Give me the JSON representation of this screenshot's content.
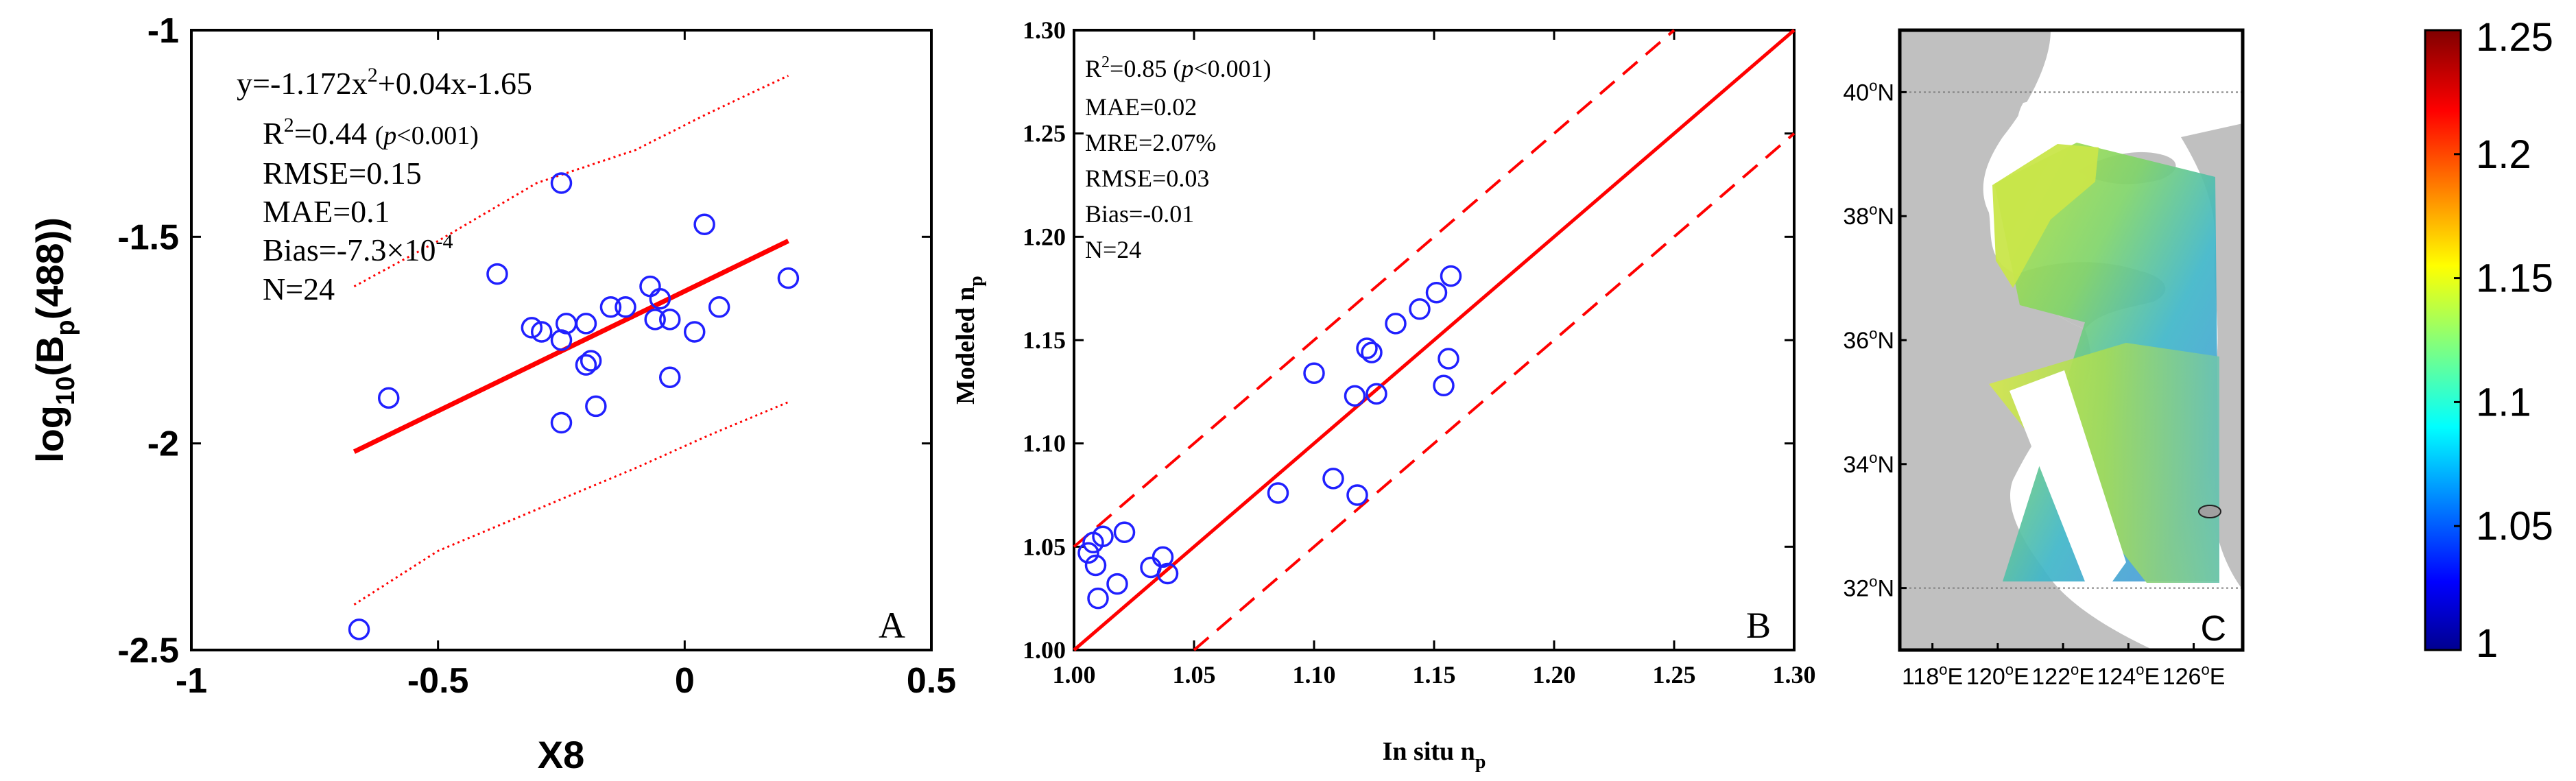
{
  "chart_data": [
    {
      "panel": "A",
      "type": "scatter",
      "xlabel": "X8",
      "ylabel_main": "log",
      "ylabel_sub": "10",
      "ylabel_paren_open": "(B",
      "ylabel_p": "p",
      "ylabel_rest": "(488))",
      "xlim": [
        -1,
        0.5
      ],
      "ylim": [
        -2.5,
        -1
      ],
      "xticks": [
        -1,
        -0.5,
        0,
        0.5
      ],
      "xtick_labels": [
        "-1",
        "-0.5",
        "0",
        "0.5"
      ],
      "yticks": [
        -1,
        -1.5,
        -2,
        -2.5
      ],
      "ytick_labels": [
        "-1",
        "-1.5",
        "-2",
        "-2.5"
      ],
      "equation": {
        "prefix": "y=-1.172x",
        "sup": "2",
        "suffix": "+0.04x-1.65"
      },
      "r2": {
        "prefix": "R",
        "sup": "2",
        "value": "=0.44 ",
        "p_open": "(",
        "p_italic": "p",
        "p_rest": "<0.001)"
      },
      "rmse": "RMSE=0.15",
      "mae": "MAE=0.1",
      "bias": {
        "prefix": "Bias=-7.3×10",
        "sup": "-4"
      },
      "n": "N=24",
      "panel_label": "A",
      "points": [
        [
          -0.66,
          -2.45
        ],
        [
          -0.6,
          -1.89
        ],
        [
          -0.38,
          -1.59
        ],
        [
          -0.25,
          -1.37
        ],
        [
          -0.31,
          -1.72
        ],
        [
          -0.29,
          -1.73
        ],
        [
          -0.25,
          -1.75
        ],
        [
          -0.24,
          -1.71
        ],
        [
          -0.2,
          -1.71
        ],
        [
          -0.2,
          -1.81
        ],
        [
          -0.19,
          -1.8
        ],
        [
          -0.18,
          -1.91
        ],
        [
          -0.15,
          -1.67
        ],
        [
          -0.12,
          -1.67
        ],
        [
          -0.07,
          -1.62
        ],
        [
          -0.05,
          -1.65
        ],
        [
          -0.06,
          -1.7
        ],
        [
          -0.03,
          -1.7
        ],
        [
          -0.03,
          -1.84
        ],
        [
          0.02,
          -1.73
        ],
        [
          0.04,
          -1.47
        ],
        [
          0.07,
          -1.67
        ],
        [
          -0.25,
          -1.95
        ],
        [
          0.21,
          -1.6
        ]
      ],
      "fit_line": [
        [
          -0.67,
          -2.02
        ],
        [
          0.21,
          -1.51
        ]
      ],
      "upper_bound": [
        [
          -0.67,
          -1.62
        ],
        [
          -0.5,
          -1.51
        ],
        [
          -0.3,
          -1.37
        ],
        [
          -0.1,
          -1.29
        ],
        [
          0.05,
          -1.2
        ],
        [
          0.21,
          -1.11
        ]
      ],
      "lower_bound": [
        [
          -0.67,
          -2.39
        ],
        [
          -0.5,
          -2.26
        ],
        [
          -0.3,
          -2.16
        ],
        [
          -0.1,
          -2.06
        ],
        [
          0.05,
          -1.98
        ],
        [
          0.21,
          -1.9
        ]
      ],
      "colors": {
        "points": "#2020ff",
        "fit": "#ff0000",
        "bounds": "#ff0000"
      }
    },
    {
      "panel": "B",
      "type": "scatter",
      "xlabel_main": "In situ n",
      "xlabel_sub": "p",
      "ylabel_main": "Modeled n",
      "ylabel_sub": "p",
      "xlim": [
        1.0,
        1.3
      ],
      "ylim": [
        1.0,
        1.3
      ],
      "xticks": [
        1.0,
        1.05,
        1.1,
        1.15,
        1.2,
        1.25,
        1.3
      ],
      "xtick_labels": [
        "1.00",
        "1.05",
        "1.10",
        "1.15",
        "1.20",
        "1.25",
        "1.30"
      ],
      "yticks": [
        1.0,
        1.05,
        1.1,
        1.15,
        1.2,
        1.25,
        1.3
      ],
      "ytick_labels": [
        "1.00",
        "1.05",
        "1.10",
        "1.15",
        "1.20",
        "1.25",
        "1.30"
      ],
      "r2": {
        "prefix": "R",
        "sup": "2",
        "value": "=0.85 ",
        "p_open": "(",
        "p_italic": "p",
        "p_rest": "<0.001)"
      },
      "mae": "MAE=0.02",
      "mre": "MRE=2.07%",
      "rmse": "RMSE=0.03",
      "bias": "Bias=-0.01",
      "n": "N=24",
      "panel_label": "B",
      "points": [
        [
          1.006,
          1.047
        ],
        [
          1.008,
          1.052
        ],
        [
          1.009,
          1.041
        ],
        [
          1.01,
          1.025
        ],
        [
          1.012,
          1.055
        ],
        [
          1.018,
          1.032
        ],
        [
          1.021,
          1.057
        ],
        [
          1.032,
          1.04
        ],
        [
          1.037,
          1.045
        ],
        [
          1.039,
          1.037
        ],
        [
          1.085,
          1.076
        ],
        [
          1.1,
          1.134
        ],
        [
          1.108,
          1.083
        ],
        [
          1.117,
          1.123
        ],
        [
          1.118,
          1.075
        ],
        [
          1.122,
          1.146
        ],
        [
          1.124,
          1.144
        ],
        [
          1.126,
          1.124
        ],
        [
          1.134,
          1.158
        ],
        [
          1.144,
          1.165
        ],
        [
          1.151,
          1.173
        ],
        [
          1.154,
          1.128
        ],
        [
          1.156,
          1.141
        ],
        [
          1.157,
          1.181
        ]
      ],
      "one_to_one": [
        [
          1.0,
          1.0
        ],
        [
          1.3,
          1.3
        ]
      ],
      "band_offset": 0.05,
      "colors": {
        "points": "#2020ff",
        "line": "#ff0000"
      }
    },
    {
      "panel": "C",
      "type": "heatmap",
      "lat_labels": [
        {
          "deg": "40",
          "sup": "o",
          "hemi": "N",
          "lat": 40
        },
        {
          "deg": "38",
          "sup": "o",
          "hemi": "N",
          "lat": 38
        },
        {
          "deg": "36",
          "sup": "o",
          "hemi": "N",
          "lat": 36
        },
        {
          "deg": "34",
          "sup": "o",
          "hemi": "N",
          "lat": 34
        },
        {
          "deg": "32",
          "sup": "o",
          "hemi": "N",
          "lat": 32
        }
      ],
      "lon_labels": [
        {
          "deg": "118",
          "sup": "o",
          "hemi": "E",
          "lon": 118
        },
        {
          "deg": "120",
          "sup": "o",
          "hemi": "E",
          "lon": 120
        },
        {
          "deg": "122",
          "sup": "o",
          "hemi": "E",
          "lon": 122
        },
        {
          "deg": "124",
          "sup": "o",
          "hemi": "E",
          "lon": 124
        },
        {
          "deg": "126",
          "sup": "o",
          "hemi": "E",
          "lon": 126
        }
      ],
      "lat_range": [
        31.0,
        41.0
      ],
      "lon_range": [
        117.0,
        127.5
      ],
      "panel_label": "C",
      "colorbar": {
        "min": 1.0,
        "max": 1.25,
        "ticks": [
          1.25,
          1.2,
          1.15,
          1.1,
          1.05,
          1
        ],
        "tick_labels": [
          "1.25",
          "1.2",
          "1.15",
          "1.1",
          "1.05",
          "1"
        ],
        "colormap": "jet"
      },
      "colors": {
        "land": "#c0c0c0",
        "gridline": "#808080"
      }
    }
  ]
}
